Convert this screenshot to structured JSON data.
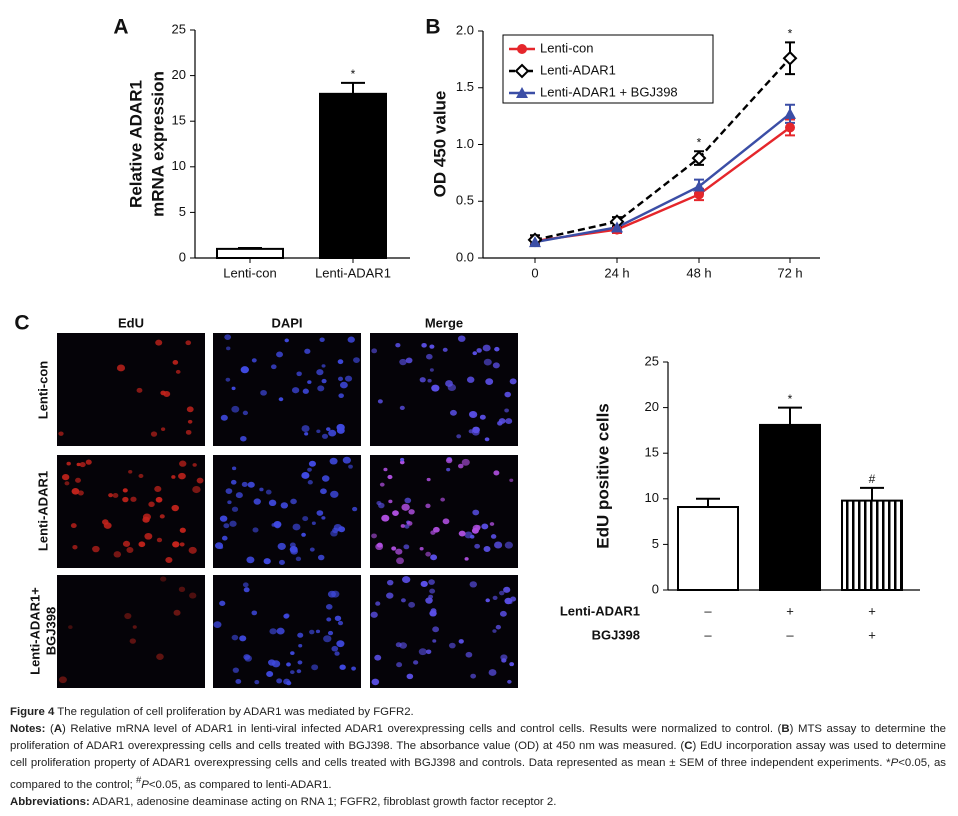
{
  "chart_data": [
    {
      "type": "bar",
      "panel_label": "A",
      "ylabel": [
        "Relative ADAR1",
        "mRNA expression"
      ],
      "categories": [
        "Lenti-con",
        "Lenti-ADAR1"
      ],
      "values": [
        1.0,
        18.0
      ],
      "errors": [
        0.1,
        1.2
      ],
      "colors": [
        "#ffffff",
        "#000000"
      ],
      "hatch": [
        false,
        false
      ],
      "annotations": [
        null,
        "*"
      ],
      "ylim": [
        0,
        25
      ],
      "yticks": [
        0,
        5,
        10,
        15,
        20,
        25
      ]
    },
    {
      "type": "line",
      "panel_label": "B",
      "ylabel": "OD 450 value",
      "categories": [
        "0",
        "24 h",
        "48 h",
        "72 h"
      ],
      "series": [
        {
          "name": "Lenti-con",
          "color": "#e5262b",
          "marker": "circle",
          "dashed": false,
          "values": [
            0.15,
            0.25,
            0.56,
            1.15
          ],
          "errors": [
            0.03,
            0.03,
            0.05,
            0.07
          ]
        },
        {
          "name": "Lenti-ADAR1",
          "color": "#000000",
          "marker": "diamond",
          "dashed": true,
          "values": [
            0.16,
            0.32,
            0.88,
            1.76
          ],
          "errors": [
            0.04,
            0.04,
            0.06,
            0.14
          ]
        },
        {
          "name": "Lenti-ADAR1 + BGJ398",
          "color": "#3b4ea6",
          "marker": "triangle",
          "dashed": false,
          "values": [
            0.14,
            0.27,
            0.63,
            1.27
          ],
          "errors": [
            0.03,
            0.04,
            0.06,
            0.08
          ]
        }
      ],
      "annotations": [
        null,
        null,
        "*",
        "*"
      ],
      "legend": "upper-left",
      "ylim": [
        0,
        2.0
      ],
      "yticks": [
        {
          "value": 0,
          "label": "0.0"
        },
        {
          "value": 0.5,
          "label": "0.5"
        },
        {
          "value": 1.0,
          "label": "1.0"
        },
        {
          "value": 1.5,
          "label": "1.5"
        },
        {
          "value": 2.0,
          "label": "2.0"
        }
      ]
    },
    {
      "type": "bar",
      "panel_label": "C",
      "ylabel": "EdU positive cells",
      "factors": [
        {
          "name": "Lenti-ADAR1",
          "levels": [
            "–",
            "+",
            "+"
          ]
        },
        {
          "name": "BGJ398",
          "levels": [
            "–",
            "–",
            "+"
          ]
        }
      ],
      "values": [
        9.1,
        18.1,
        9.8
      ],
      "errors": [
        0.9,
        1.9,
        1.4
      ],
      "colors": [
        "#ffffff",
        "#000000",
        "#ffffff"
      ],
      "hatch": [
        false,
        false,
        true
      ],
      "annotations": [
        null,
        "*",
        "#"
      ],
      "ylim": [
        0,
        25
      ],
      "yticks": [
        0,
        5,
        10,
        15,
        20,
        25
      ]
    }
  ],
  "images": {
    "columns": [
      "EdU",
      "DAPI",
      "Merge"
    ],
    "rows": [
      [
        "Lenti-con"
      ],
      [
        "Lenti-ADAR1"
      ],
      [
        "Lenti-ADAR1+",
        "BGJ398"
      ]
    ]
  },
  "caption": {
    "figure": "Figure 4",
    "title": " The regulation of cell proliferation by ADAR1 was mediated by FGFR2.",
    "notes": [
      "Notes:",
      " (",
      "A",
      ") Relative mRNA level of ADAR1 in lenti-viral infected ADAR1 overexpressing cells and control cells. Results were normalized to control. (",
      "B",
      ") MTS assay to determine the proliferation of ADAR1 overexpressing cells and cells treated with BGJ398. The absorbance value (OD) at 450 nm was measured. (",
      "C",
      ") EdU incorporation assay was used to determine cell proliferation property of ADAR1 overexpressing cells and cells treated with BGJ398 and controls. Data represented as mean ± SEM of three independent experiments. *",
      "P",
      "<0.05, as compared to the control; ",
      "#",
      "P",
      "<0.05, as compared to lenti-ADAR1."
    ],
    "abbreviations_label": "Abbreviations:",
    "abbreviations": " ADAR1, adenosine deaminase acting on RNA 1; FGFR2, fibroblast growth factor receptor 2."
  }
}
